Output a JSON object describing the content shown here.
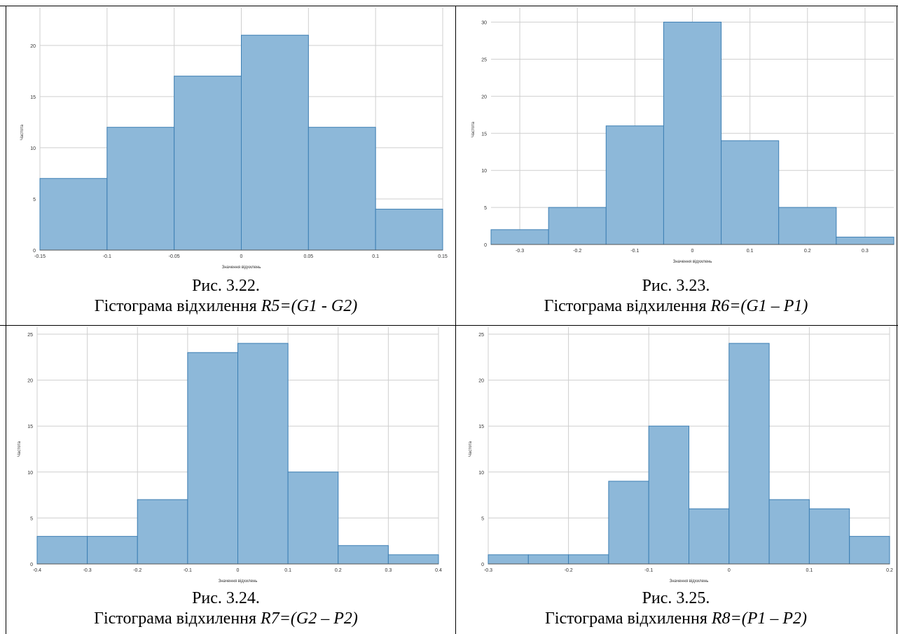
{
  "figures": [
    {
      "fig_label": "Рис. 3.22.",
      "caption_prefix": "Гістограма відхилення ",
      "caption_formula": "R5=(G1 - G2)"
    },
    {
      "fig_label": "Рис. 3.23.",
      "caption_prefix": "Гістограма відхилення ",
      "caption_formula": "R6=(G1 – P1)"
    },
    {
      "fig_label": "Рис. 3.24.",
      "caption_prefix": "Гістограма відхилення ",
      "caption_formula": "R7=(G2 – P2)"
    },
    {
      "fig_label": "Рис. 3.25.",
      "caption_prefix": "Гістограма відхилення ",
      "caption_formula": "R8=(P1 – P2)"
    }
  ],
  "colors": {
    "bar_fill": "#8db8d9",
    "bar_stroke": "#3d7fb4",
    "grid": "#cfcfcf",
    "axis": "#555555",
    "text": "#333333"
  },
  "chart_data": [
    {
      "type": "bar",
      "subtype": "histogram",
      "bins": [
        {
          "x0": -0.15,
          "x1": -0.1,
          "count": 7
        },
        {
          "x0": -0.1,
          "x1": -0.05,
          "count": 12
        },
        {
          "x0": -0.05,
          "x1": 0,
          "count": 17
        },
        {
          "x0": 0,
          "x1": 0.05,
          "count": 21
        },
        {
          "x0": 0.05,
          "x1": 0.1,
          "count": 12
        },
        {
          "x0": 0.1,
          "x1": 0.15,
          "count": 4
        }
      ],
      "xlim": [
        -0.15,
        0.15
      ],
      "ylim": [
        0,
        23
      ],
      "xticks": [
        -0.15,
        -0.1,
        -0.05,
        0,
        0.05,
        0.1,
        0.15
      ],
      "xtick_labels": [
        "-0.15",
        "-0.1",
        "-0.05",
        "0",
        "0.05",
        "0.1",
        "0.15"
      ],
      "yticks": [
        0,
        5,
        10,
        15,
        20
      ],
      "ytick_labels": [
        "0",
        "5",
        "10",
        "15",
        "20"
      ],
      "xlabel": "Значення відхилень",
      "ylabel": "Частота",
      "grid": true
    },
    {
      "type": "bar",
      "subtype": "histogram",
      "bins": [
        {
          "x0": -0.35,
          "x1": -0.25,
          "count": 2
        },
        {
          "x0": -0.25,
          "x1": -0.15,
          "count": 5
        },
        {
          "x0": -0.15,
          "x1": -0.05,
          "count": 16
        },
        {
          "x0": -0.05,
          "x1": 0.05,
          "count": 30
        },
        {
          "x0": 0.05,
          "x1": 0.15,
          "count": 14
        },
        {
          "x0": 0.15,
          "x1": 0.25,
          "count": 5
        },
        {
          "x0": 0.25,
          "x1": 0.35,
          "count": 1
        }
      ],
      "xlim": [
        -0.35,
        0.35
      ],
      "ylim": [
        0,
        31
      ],
      "xticks": [
        -0.3,
        -0.2,
        -0.1,
        0,
        0.1,
        0.2,
        0.3
      ],
      "xtick_labels": [
        "-0.3",
        "-0.2",
        "-0.1",
        "0",
        "0.1",
        "0.2",
        "0.3"
      ],
      "yticks": [
        0,
        5,
        10,
        15,
        20,
        25,
        30
      ],
      "ytick_labels": [
        "0",
        "5",
        "10",
        "15",
        "20",
        "25",
        "30"
      ],
      "xlabel": "Значення відхилень",
      "ylabel": "Частота",
      "grid": true
    },
    {
      "type": "bar",
      "subtype": "histogram",
      "bins": [
        {
          "x0": -0.4,
          "x1": -0.3,
          "count": 3
        },
        {
          "x0": -0.3,
          "x1": -0.2,
          "count": 3
        },
        {
          "x0": -0.2,
          "x1": -0.1,
          "count": 7
        },
        {
          "x0": -0.1,
          "x1": 0,
          "count": 23
        },
        {
          "x0": 0,
          "x1": 0.1,
          "count": 24
        },
        {
          "x0": 0.1,
          "x1": 0.2,
          "count": 10
        },
        {
          "x0": 0.2,
          "x1": 0.3,
          "count": 2
        },
        {
          "x0": 0.3,
          "x1": 0.4,
          "count": 1
        }
      ],
      "xlim": [
        -0.4,
        0.4
      ],
      "ylim": [
        0,
        25
      ],
      "xticks": [
        -0.4,
        -0.3,
        -0.2,
        -0.1,
        0,
        0.1,
        0.2,
        0.3,
        0.4
      ],
      "xtick_labels": [
        "-0.4",
        "-0.3",
        "-0.2",
        "-0.1",
        "0",
        "0.1",
        "0.2",
        "0.3",
        "0.4"
      ],
      "yticks": [
        0,
        5,
        10,
        15,
        20,
        25
      ],
      "ytick_labels": [
        "0",
        "5",
        "10",
        "15",
        "20",
        "25"
      ],
      "xlabel": "Значення відхилень",
      "ylabel": "Частота",
      "grid": true
    },
    {
      "type": "bar",
      "subtype": "histogram",
      "bins": [
        {
          "x0": -0.3,
          "x1": -0.25,
          "count": 1
        },
        {
          "x0": -0.25,
          "x1": -0.2,
          "count": 1
        },
        {
          "x0": -0.2,
          "x1": -0.15,
          "count": 1
        },
        {
          "x0": -0.15,
          "x1": -0.1,
          "count": 9
        },
        {
          "x0": -0.1,
          "x1": -0.05,
          "count": 15
        },
        {
          "x0": -0.05,
          "x1": 0,
          "count": 6
        },
        {
          "x0": 0,
          "x1": 0.05,
          "count": 24
        },
        {
          "x0": 0.05,
          "x1": 0.1,
          "count": 7
        },
        {
          "x0": 0.1,
          "x1": 0.15,
          "count": 6
        },
        {
          "x0": 0.15,
          "x1": 0.2,
          "count": 3
        }
      ],
      "xlim": [
        -0.3,
        0.2
      ],
      "ylim": [
        0,
        25
      ],
      "xticks": [
        -0.3,
        -0.2,
        -0.1,
        0,
        0.1,
        0.2
      ],
      "xtick_labels": [
        "-0.3",
        "-0.2",
        "-0.1",
        "0",
        "0.1",
        "0.2"
      ],
      "yticks": [
        0,
        5,
        10,
        15,
        20,
        25
      ],
      "ytick_labels": [
        "0",
        "5",
        "10",
        "15",
        "20",
        "25"
      ],
      "xlabel": "Значення відхилень",
      "ylabel": "Частота",
      "grid": true
    }
  ]
}
